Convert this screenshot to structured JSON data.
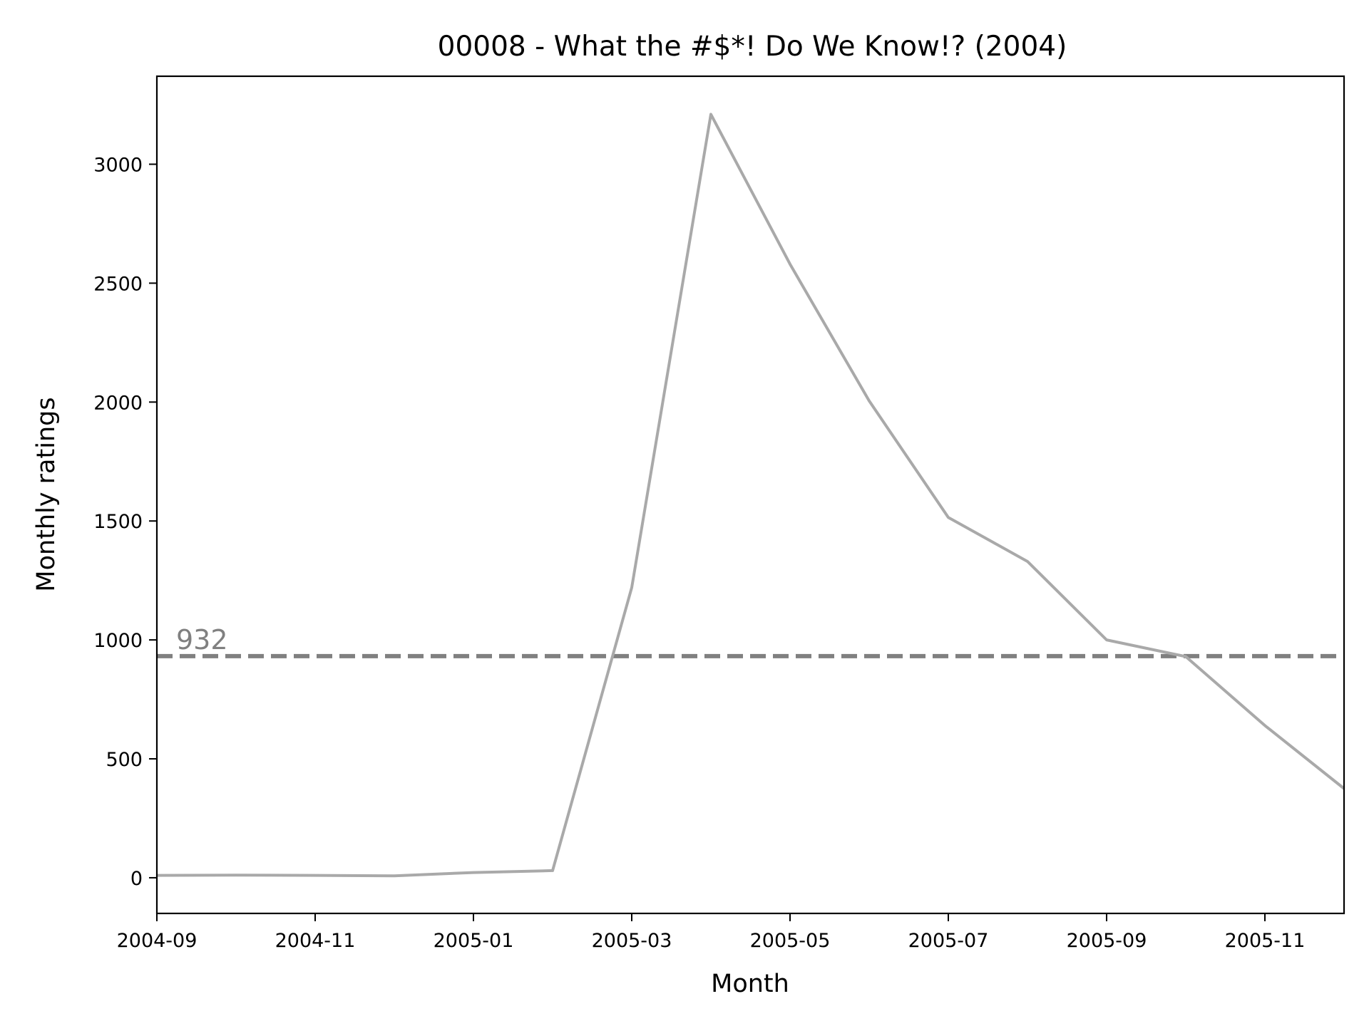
{
  "chart_data": {
    "type": "line",
    "title": "00008 - What the #$*! Do We Know!? (2004)",
    "xlabel": "Month",
    "ylabel": "Monthly ratings",
    "x_range": [
      "2004-09",
      "2005-12"
    ],
    "ylim": [
      -150,
      3370
    ],
    "x_ticks": [
      "2004-09",
      "2004-11",
      "2005-01",
      "2005-03",
      "2005-05",
      "2005-07",
      "2005-09",
      "2005-11"
    ],
    "y_ticks": [
      0,
      500,
      1000,
      1500,
      2000,
      2500,
      3000
    ],
    "grid": false,
    "series": [
      {
        "color": "#a9a9a9",
        "x": [
          "2004-09",
          "2004-10",
          "2004-11",
          "2004-12",
          "2005-01",
          "2005-02",
          "2005-03",
          "2005-04",
          "2005-05",
          "2005-06",
          "2005-07",
          "2005-08",
          "2005-09",
          "2005-10",
          "2005-11",
          "2005-12"
        ],
        "values": [
          10,
          11,
          10,
          8,
          22,
          30,
          1220,
          3210,
          2580,
          2005,
          1515,
          1330,
          1000,
          930,
          640,
          375
        ]
      }
    ],
    "reference_line": {
      "value": 932,
      "label": "932",
      "color": "#808080",
      "style": "dashed"
    }
  }
}
